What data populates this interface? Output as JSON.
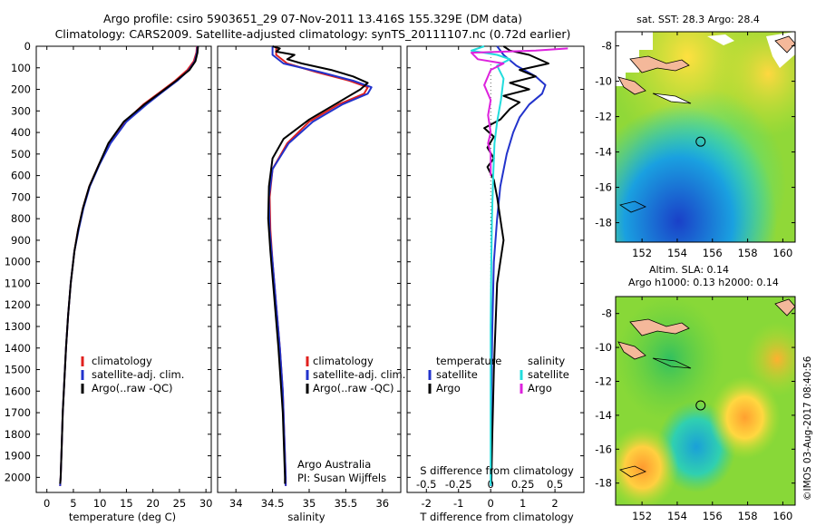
{
  "header": {
    "title_line1": "Argo profile: csiro 5903651_29 07-Nov-2011 13.416S 155.329E (DM data)",
    "title_line2": "Climatology: CARS2009. Satellite-adjusted climatology: synTS_20111107.nc (0.72d earlier)"
  },
  "colors": {
    "climatology": "#e0201e",
    "satellite": "#2233cc",
    "argo": "#000000",
    "sal_satellite": "#22dddd",
    "sal_argo": "#dd22dd"
  },
  "chart_data": [
    {
      "type": "line",
      "id": "temperature",
      "xlabel": "temperature (deg C)",
      "xlim": [
        -2,
        31
      ],
      "ylim": [
        2070,
        0
      ],
      "xticks": [
        0,
        5,
        10,
        15,
        20,
        25,
        30
      ],
      "yticks": [
        0,
        100,
        200,
        300,
        400,
        500,
        600,
        700,
        800,
        900,
        1000,
        1100,
        1200,
        1300,
        1400,
        1500,
        1600,
        1700,
        1800,
        1900,
        2000
      ],
      "legend": [
        "climatology",
        "satellite-adj. clim.",
        "Argo(..raw -QC)"
      ],
      "series": [
        {
          "name": "climatology",
          "color": "#e0201e",
          "points": [
            [
              28.3,
              0
            ],
            [
              28.2,
              30
            ],
            [
              27.7,
              70
            ],
            [
              26.5,
              110
            ],
            [
              24.2,
              160
            ],
            [
              21.5,
              210
            ],
            [
              18.2,
              270
            ],
            [
              14.7,
              350
            ],
            [
              11.8,
              450
            ],
            [
              9.8,
              550
            ],
            [
              8.0,
              650
            ],
            [
              6.8,
              750
            ],
            [
              5.9,
              850
            ],
            [
              5.2,
              950
            ],
            [
              4.5,
              1100
            ],
            [
              4.0,
              1250
            ],
            [
              3.6,
              1400
            ],
            [
              3.3,
              1550
            ],
            [
              3.0,
              1700
            ],
            [
              2.8,
              1850
            ],
            [
              2.6,
              2000
            ],
            [
              2.5,
              2040
            ]
          ]
        },
        {
          "name": "satellite",
          "color": "#2233cc",
          "points": [
            [
              28.4,
              0
            ],
            [
              28.3,
              30
            ],
            [
              27.9,
              70
            ],
            [
              26.8,
              110
            ],
            [
              24.6,
              160
            ],
            [
              21.9,
              210
            ],
            [
              18.8,
              270
            ],
            [
              15.0,
              350
            ],
            [
              12.0,
              450
            ],
            [
              9.9,
              550
            ],
            [
              8.1,
              650
            ],
            [
              6.9,
              750
            ],
            [
              6.0,
              850
            ],
            [
              5.2,
              950
            ],
            [
              4.5,
              1100
            ],
            [
              4.0,
              1250
            ],
            [
              3.6,
              1400
            ],
            [
              3.3,
              1550
            ],
            [
              3.0,
              1700
            ],
            [
              2.8,
              1850
            ],
            [
              2.6,
              2000
            ],
            [
              2.5,
              2040
            ]
          ]
        },
        {
          "name": "argo",
          "color": "#000000",
          "points": [
            [
              28.5,
              0
            ],
            [
              28.4,
              30
            ],
            [
              28.0,
              70
            ],
            [
              26.9,
              110
            ],
            [
              24.4,
              160
            ],
            [
              21.7,
              210
            ],
            [
              18.4,
              270
            ],
            [
              14.5,
              350
            ],
            [
              11.6,
              450
            ],
            [
              9.8,
              550
            ],
            [
              8.0,
              650
            ],
            [
              6.8,
              750
            ],
            [
              5.9,
              850
            ],
            [
              5.2,
              950
            ],
            [
              4.5,
              1100
            ],
            [
              4.0,
              1250
            ],
            [
              3.6,
              1400
            ],
            [
              3.3,
              1550
            ],
            [
              3.0,
              1700
            ],
            [
              2.8,
              1850
            ],
            [
              2.6,
              2000
            ],
            [
              2.5,
              2030
            ]
          ]
        }
      ]
    },
    {
      "type": "line",
      "id": "salinity",
      "xlabel": "salinity",
      "xlim": [
        33.75,
        36.25
      ],
      "ylim": [
        2070,
        0
      ],
      "xticks": [
        34,
        34.5,
        35,
        35.5,
        36
      ],
      "xtick_labels": [
        "34",
        "34.5",
        "35",
        "35.5",
        "36"
      ],
      "legend": [
        "climatology",
        "satellite-adj. clim.",
        "Argo(..raw -QC)"
      ],
      "annotation_line1": "Argo Australia",
      "annotation_line2": "PI: Susan Wijffels",
      "series": [
        {
          "name": "climatology",
          "color": "#e0201e",
          "points": [
            [
              34.55,
              0
            ],
            [
              34.55,
              40
            ],
            [
              34.7,
              80
            ],
            [
              35.1,
              120
            ],
            [
              35.55,
              160
            ],
            [
              35.8,
              190
            ],
            [
              35.75,
              220
            ],
            [
              35.4,
              270
            ],
            [
              35.0,
              350
            ],
            [
              34.7,
              450
            ],
            [
              34.5,
              570
            ],
            [
              34.46,
              700
            ],
            [
              34.47,
              850
            ],
            [
              34.5,
              1000
            ],
            [
              34.55,
              1200
            ],
            [
              34.6,
              1400
            ],
            [
              34.64,
              1600
            ],
            [
              34.66,
              1800
            ],
            [
              34.68,
              2000
            ],
            [
              34.68,
              2040
            ]
          ]
        },
        {
          "name": "satellite",
          "color": "#2233cc",
          "points": [
            [
              34.5,
              0
            ],
            [
              34.5,
              40
            ],
            [
              34.65,
              80
            ],
            [
              35.15,
              120
            ],
            [
              35.6,
              160
            ],
            [
              35.85,
              190
            ],
            [
              35.8,
              220
            ],
            [
              35.45,
              270
            ],
            [
              35.05,
              350
            ],
            [
              34.72,
              450
            ],
            [
              34.5,
              570
            ],
            [
              34.45,
              700
            ],
            [
              34.46,
              850
            ],
            [
              34.5,
              1000
            ],
            [
              34.55,
              1200
            ],
            [
              34.6,
              1400
            ],
            [
              34.64,
              1600
            ],
            [
              34.66,
              1800
            ],
            [
              34.68,
              2000
            ],
            [
              34.68,
              2040
            ]
          ]
        },
        {
          "name": "argo",
          "color": "#000000",
          "points": [
            [
              34.5,
              0
            ],
            [
              34.6,
              10
            ],
            [
              34.55,
              25
            ],
            [
              34.8,
              40
            ],
            [
              34.7,
              60
            ],
            [
              34.9,
              80
            ],
            [
              35.3,
              110
            ],
            [
              35.6,
              140
            ],
            [
              35.8,
              170
            ],
            [
              35.7,
              200
            ],
            [
              35.4,
              260
            ],
            [
              35.0,
              340
            ],
            [
              34.65,
              430
            ],
            [
              34.5,
              520
            ],
            [
              34.45,
              650
            ],
            [
              34.44,
              800
            ],
            [
              34.47,
              950
            ],
            [
              34.52,
              1150
            ],
            [
              34.58,
              1400
            ],
            [
              34.64,
              1700
            ],
            [
              34.67,
              2000
            ],
            [
              34.67,
              2030
            ]
          ]
        }
      ]
    },
    {
      "type": "line",
      "id": "difference",
      "xlabel_T": "T difference from climatology",
      "xlabel_S": "S difference from climatology",
      "xlim_T": [
        -2.6,
        2.9
      ],
      "xticks_T": [
        -2,
        -1,
        0,
        1,
        2
      ],
      "xticks_S": [
        -0.5,
        -0.25,
        0,
        0.25,
        0.5
      ],
      "xtick_labels_S": [
        "-0.5",
        "-0.25",
        "0",
        "0.25",
        "0.5"
      ],
      "ylim": [
        2070,
        0
      ],
      "legend_temperature_title": "temperature",
      "legend_salinity_title": "salinity",
      "legend_satellite": "satellite",
      "legend_argo": "Argo",
      "series": [
        {
          "name": "temperature-satellite",
          "color": "#2233cc",
          "t_units": true,
          "points": [
            [
              0.2,
              0
            ],
            [
              0.4,
              40
            ],
            [
              0.8,
              90
            ],
            [
              1.4,
              140
            ],
            [
              1.7,
              180
            ],
            [
              1.6,
              220
            ],
            [
              1.2,
              270
            ],
            [
              0.9,
              330
            ],
            [
              0.7,
              400
            ],
            [
              0.5,
              500
            ],
            [
              0.3,
              650
            ],
            [
              0.2,
              800
            ],
            [
              0.1,
              1000
            ],
            [
              0.05,
              1300
            ],
            [
              0.02,
              1600
            ],
            [
              0.01,
              2040
            ]
          ]
        },
        {
          "name": "temperature-argo",
          "color": "#000000",
          "t_units": true,
          "points": [
            [
              0.4,
              0
            ],
            [
              0.6,
              20
            ],
            [
              1.2,
              40
            ],
            [
              1.8,
              80
            ],
            [
              0.9,
              110
            ],
            [
              1.4,
              140
            ],
            [
              0.6,
              170
            ],
            [
              1.2,
              200
            ],
            [
              0.4,
              230
            ],
            [
              0.9,
              260
            ],
            [
              0.6,
              290
            ],
            [
              0.3,
              340
            ],
            [
              -0.2,
              380
            ],
            [
              0.1,
              420
            ],
            [
              -0.1,
              470
            ],
            [
              0.1,
              520
            ],
            [
              -0.1,
              560
            ],
            [
              0.1,
              620
            ],
            [
              0.2,
              700
            ],
            [
              0.3,
              800
            ],
            [
              0.4,
              900
            ],
            [
              0.3,
              1000
            ],
            [
              0.2,
              1100
            ],
            [
              0.15,
              1300
            ],
            [
              0.1,
              1500
            ],
            [
              0.05,
              1800
            ],
            [
              0.02,
              2030
            ]
          ]
        },
        {
          "name": "salinity-satellite",
          "color": "#22dddd",
          "t_units": false,
          "points": [
            [
              -0.05,
              0
            ],
            [
              -0.15,
              20
            ],
            [
              0.05,
              40
            ],
            [
              0.15,
              60
            ],
            [
              0.05,
              90
            ],
            [
              0.1,
              150
            ],
            [
              0.08,
              250
            ],
            [
              0.05,
              350
            ],
            [
              0.03,
              450
            ],
            [
              0.02,
              600
            ],
            [
              0.01,
              800
            ],
            [
              0.005,
              1000
            ],
            [
              0.0,
              1300
            ],
            [
              0.0,
              1600
            ],
            [
              0.0,
              2040
            ]
          ]
        },
        {
          "name": "salinity-argo",
          "color": "#dd22dd",
          "t_units": false,
          "points": [
            [
              0.6,
              10
            ],
            [
              0.35,
              20
            ],
            [
              -0.15,
              30
            ],
            [
              -0.1,
              60
            ],
            [
              0.1,
              80
            ],
            [
              0.0,
              110
            ],
            [
              -0.05,
              180
            ],
            [
              0.0,
              250
            ],
            [
              -0.02,
              320
            ],
            [
              0.0,
              400
            ],
            [
              -0.02,
              450
            ],
            [
              0.0,
              500
            ],
            [
              0.0,
              600
            ]
          ]
        }
      ]
    }
  ],
  "maps": {
    "sst_title": "sat. SST: 28.3 Argo: 28.4",
    "sla_title_line1": "Altim. SLA: 0.14",
    "sla_title_line2": "Argo h1000: 0.13 h2000: 0.14",
    "lat_ticks": [
      -8,
      -10,
      -12,
      -14,
      -16,
      -18
    ],
    "lon_ticks": [
      152,
      154,
      156,
      158,
      160
    ],
    "float_lat": -13.416,
    "float_lon": 155.329
  },
  "footer_credit": "©IMOS 03-Aug-2017 08:40:56"
}
